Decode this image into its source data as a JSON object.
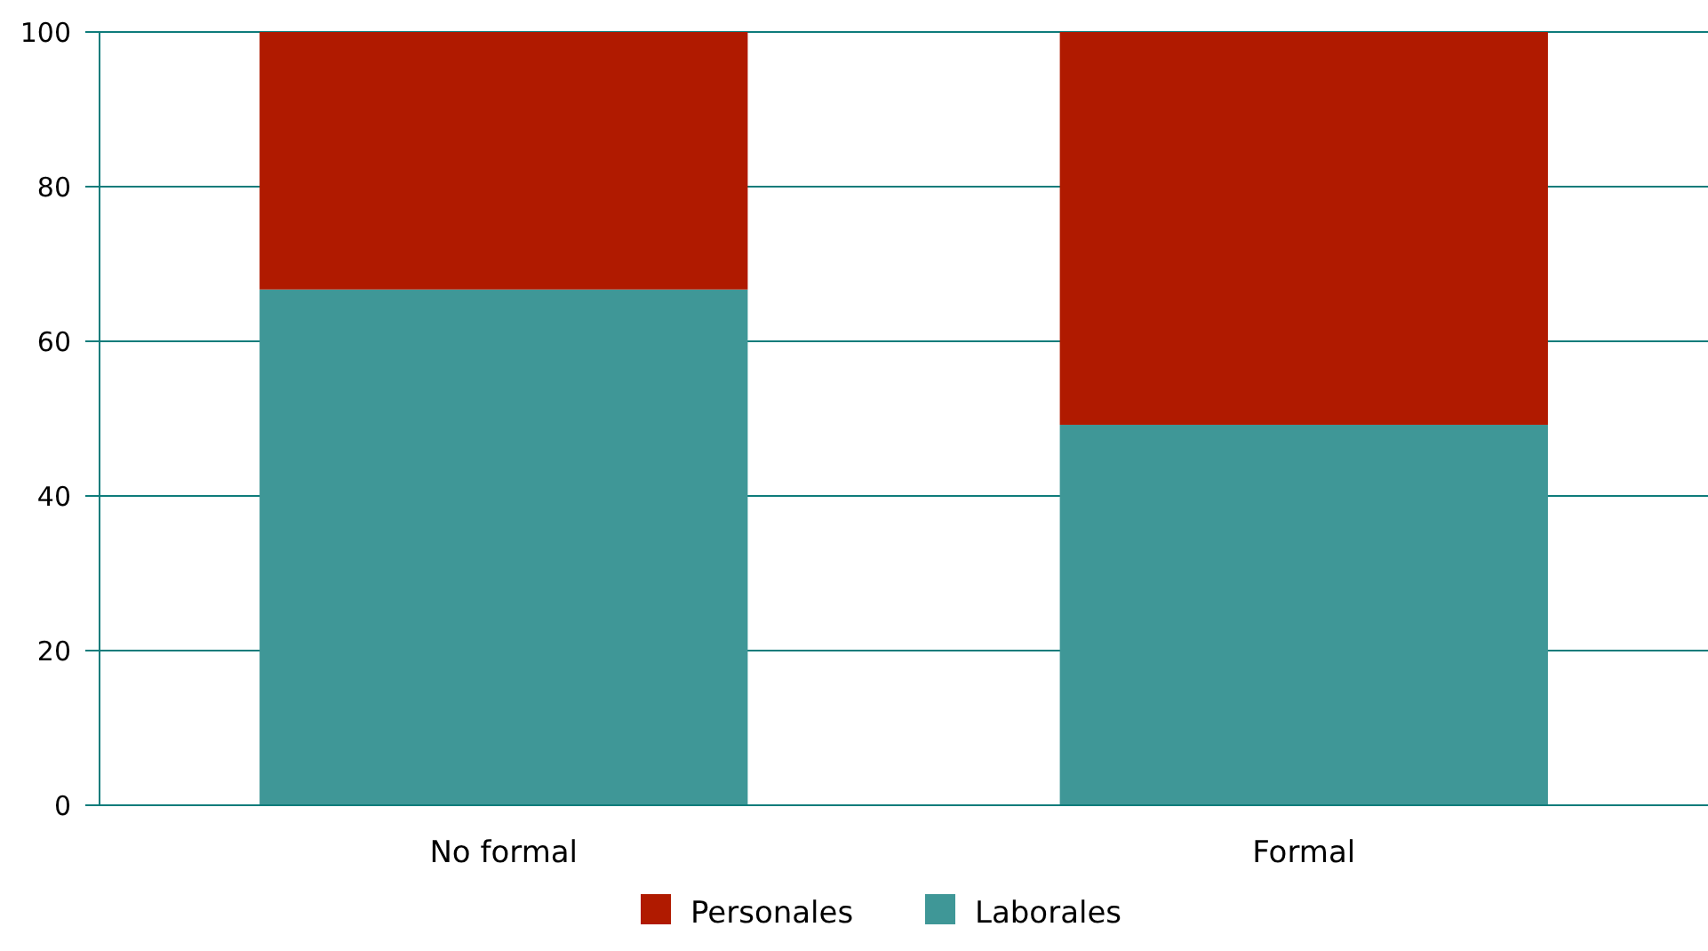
{
  "chart_data": {
    "type": "bar",
    "stacked": true,
    "categories": [
      "No formal",
      "Formal"
    ],
    "series": [
      {
        "name": "Laborales",
        "color": "#3f9797",
        "values": [
          66.7,
          49.2
        ]
      },
      {
        "name": "Personales",
        "color": "#b01a00",
        "values": [
          33.3,
          50.8
        ]
      }
    ],
    "ylim": [
      0,
      100
    ],
    "yticks": [
      0,
      20,
      40,
      60,
      80,
      100
    ],
    "grid": "y",
    "legend": "bottom"
  }
}
